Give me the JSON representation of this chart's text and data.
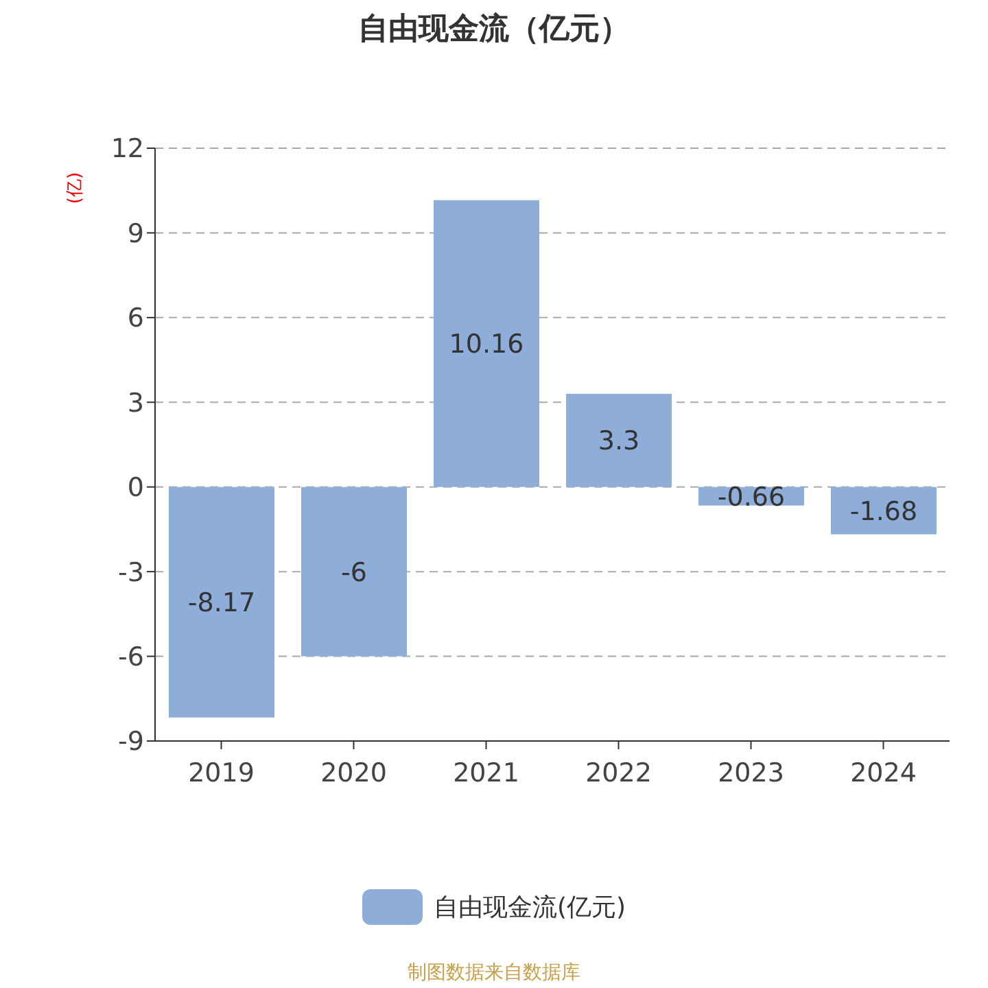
{
  "chart_data": {
    "type": "bar",
    "title": "自由现金流（亿元）",
    "ylabel": "(亿)",
    "categories": [
      "2019",
      "2020",
      "2021",
      "2022",
      "2023",
      "2024"
    ],
    "series": [
      {
        "name": "自由现金流(亿元)",
        "color": "#8eadd9",
        "values": [
          -8.17,
          -6,
          10.16,
          3.3,
          -0.66,
          -1.68
        ]
      }
    ],
    "ylim": [
      -9,
      12
    ],
    "yticks": [
      -9,
      -6,
      -3,
      0,
      3,
      6,
      9,
      12
    ],
    "grid": "y",
    "legend": "bottom",
    "data_labels": true,
    "annotations": [
      "制图数据来自数据库"
    ]
  }
}
